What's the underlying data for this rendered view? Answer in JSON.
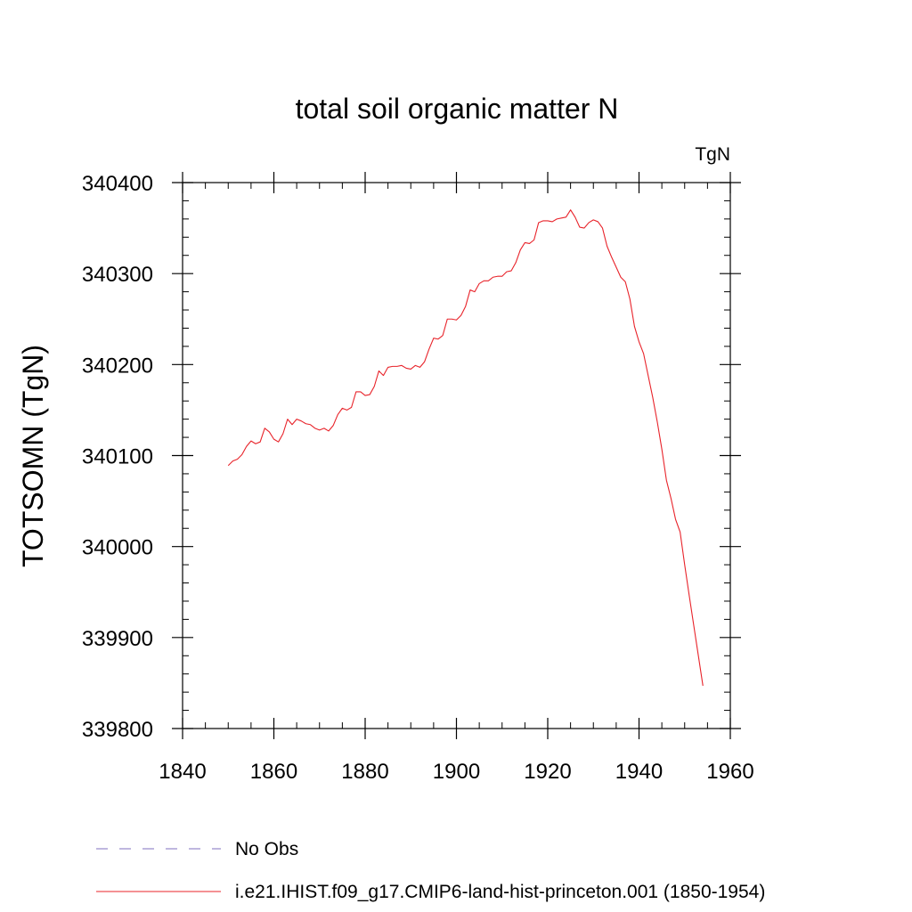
{
  "chart_data": {
    "type": "line",
    "title": "total soil organic matter N",
    "units_label": "TgN",
    "xlabel": "",
    "ylabel": "TOTSOMN  (TgN)",
    "xlim": [
      1840,
      1960
    ],
    "ylim": [
      339800,
      340400
    ],
    "x_ticks": [
      1840,
      1860,
      1880,
      1900,
      1920,
      1940,
      1960
    ],
    "y_ticks": [
      339800,
      339900,
      340000,
      340100,
      340200,
      340300,
      340400
    ],
    "grid": false,
    "legend_position": "bottom",
    "legend": [
      {
        "label": "No Obs",
        "color": "#7f6fbf",
        "dash": "dashed"
      },
      {
        "label": "i.e21.IHIST.f09_g17.CMIP6-land-hist-princeton.001 (1850-1954)",
        "color": "#e8232a",
        "dash": "solid"
      }
    ],
    "series": [
      {
        "color": "#e8232a",
        "x": [
          1850,
          1851,
          1852,
          1853,
          1854,
          1855,
          1856,
          1857,
          1858,
          1859,
          1860,
          1861,
          1862,
          1863,
          1864,
          1865,
          1866,
          1867,
          1868,
          1869,
          1870,
          1871,
          1872,
          1873,
          1874,
          1875,
          1876,
          1877,
          1878,
          1879,
          1880,
          1881,
          1882,
          1883,
          1884,
          1885,
          1886,
          1887,
          1888,
          1889,
          1890,
          1891,
          1892,
          1893,
          1894,
          1895,
          1896,
          1897,
          1898,
          1899,
          1900,
          1901,
          1902,
          1903,
          1904,
          1905,
          1906,
          1907,
          1908,
          1909,
          1910,
          1911,
          1912,
          1913,
          1914,
          1915,
          1916,
          1917,
          1918,
          1919,
          1920,
          1921,
          1922,
          1923,
          1924,
          1925,
          1926,
          1927,
          1928,
          1929,
          1930,
          1931,
          1932,
          1933,
          1934,
          1935,
          1936,
          1937,
          1938,
          1939,
          1940,
          1941,
          1942,
          1943,
          1944,
          1945,
          1946,
          1947,
          1948,
          1949,
          1950,
          1951,
          1952,
          1953,
          1954
        ],
        "values": [
          340089,
          340094,
          340096,
          340101,
          340110,
          340116,
          340113,
          340115,
          340130,
          340126,
          340118,
          340115,
          340124,
          340140,
          340134,
          340140,
          340138,
          340135,
          340134,
          340130,
          340128,
          340130,
          340127,
          340133,
          340145,
          340152,
          340150,
          340153,
          340170,
          340170,
          340166,
          340167,
          340176,
          340193,
          340188,
          340197,
          340198,
          340198,
          340199,
          340196,
          340195,
          340199,
          340197,
          340203,
          340217,
          340229,
          340228,
          340232,
          340250,
          340250,
          340249,
          340254,
          340264,
          340282,
          340280,
          340289,
          340292,
          340292,
          340296,
          340297,
          340297,
          340302,
          340303,
          340312,
          340326,
          340334,
          340333,
          340337,
          340356,
          340358,
          340358,
          340357,
          340360,
          340361,
          340362,
          340370,
          340362,
          340351,
          340350,
          340356,
          340359,
          340357,
          340350,
          340330,
          340318,
          340307,
          340296,
          340291,
          340272,
          340242,
          340225,
          340212,
          340188,
          340164,
          340137,
          340107,
          340073,
          340053,
          340030,
          340016,
          339980,
          339946,
          339913,
          339880,
          339847
        ]
      }
    ]
  }
}
